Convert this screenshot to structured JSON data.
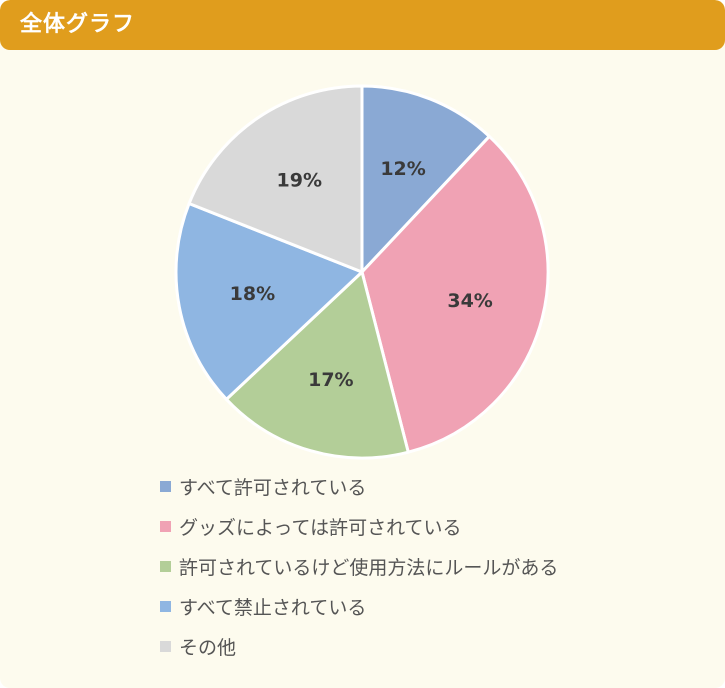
{
  "header": {
    "title": "全体グラフ"
  },
  "theme": {
    "header_bg": "#e09d1d",
    "card_bg": "#fdfbee"
  },
  "chart_data": {
    "type": "pie",
    "title": "",
    "series": [
      {
        "name": "すべて許可されている",
        "value": 12,
        "label": "12%",
        "color": "#8aa9d4"
      },
      {
        "name": "グッズによっては許可されている",
        "value": 34,
        "label": "34%",
        "color": "#f0a2b4"
      },
      {
        "name": "許可されているけど使用方法にルールがある",
        "value": 17,
        "label": "17%",
        "color": "#b3ce98"
      },
      {
        "name": "すべて禁止されている",
        "value": 18,
        "label": "18%",
        "color": "#8fb6e2"
      },
      {
        "name": "その他",
        "value": 19,
        "label": "19%",
        "color": "#d9d9d9"
      }
    ],
    "start": "12 o'clock",
    "direction": "clockwise",
    "legend_position": "bottom"
  }
}
